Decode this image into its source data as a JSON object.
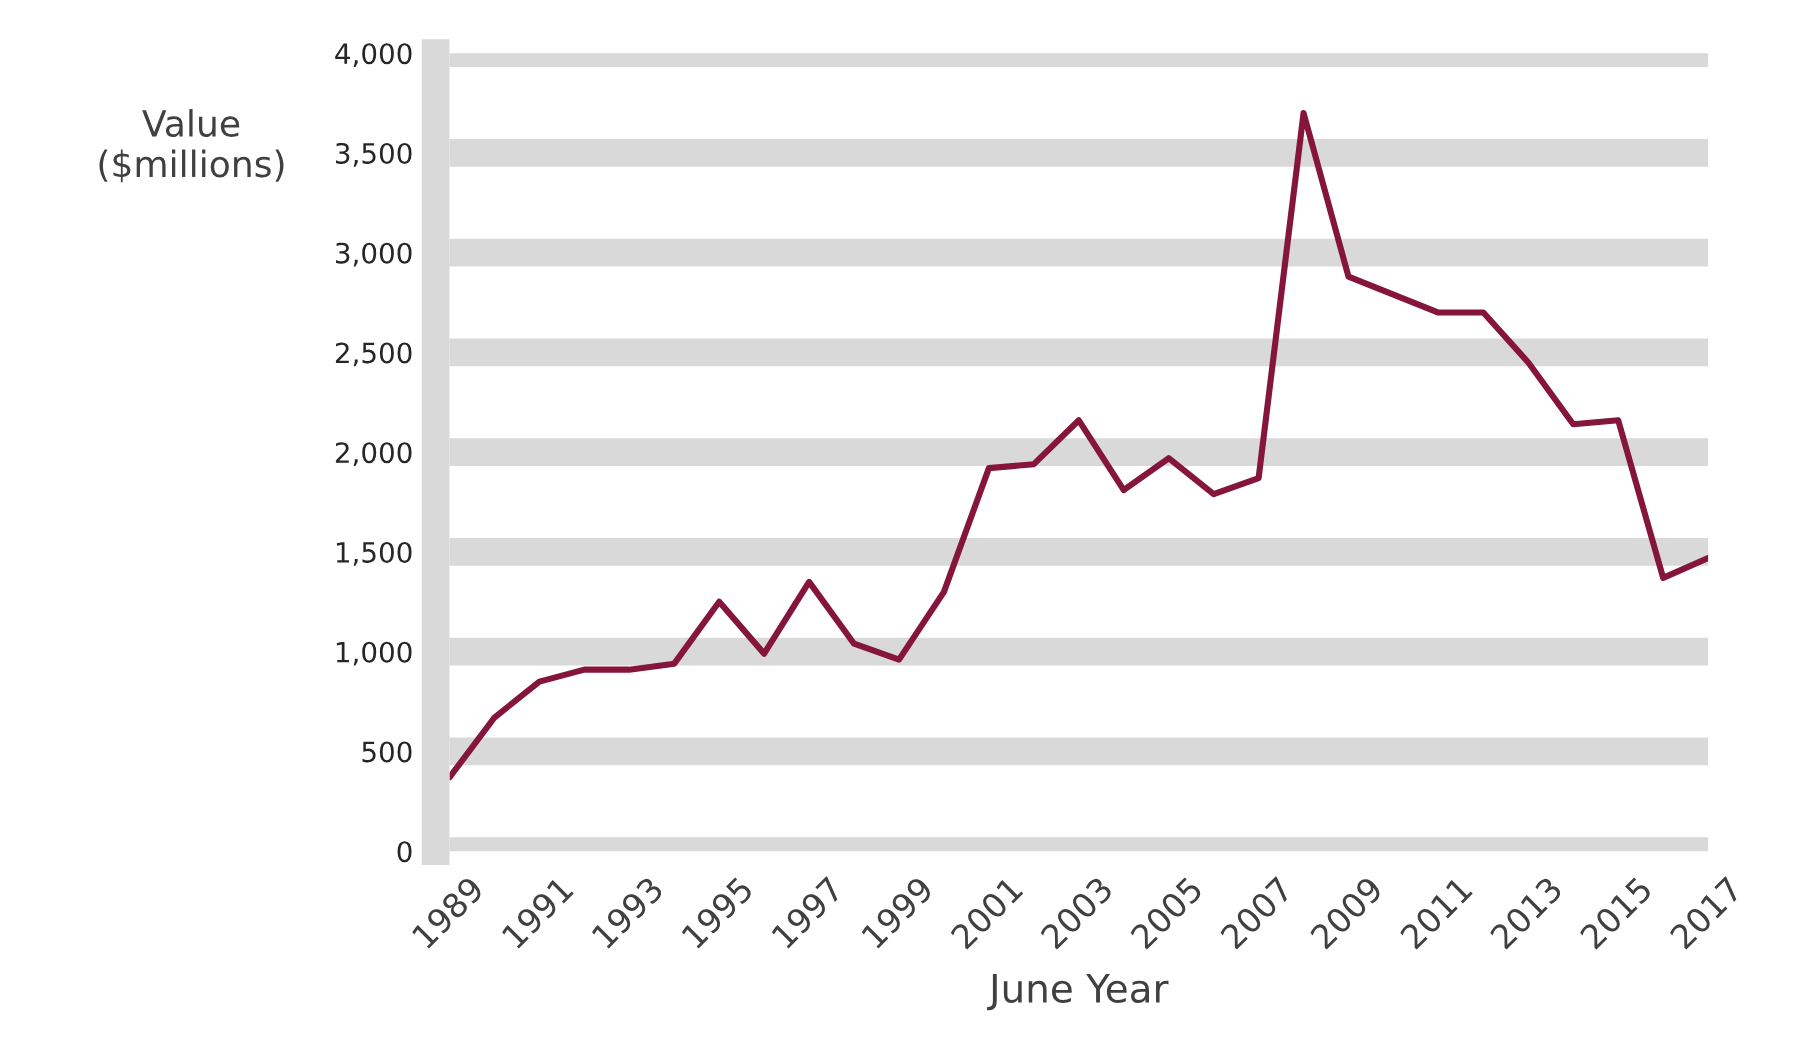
{
  "chart_data": {
    "type": "line",
    "xlabel": "June Year",
    "ylabel": "Value\n($millions)",
    "x": [
      1989,
      1990,
      1991,
      1992,
      1993,
      1994,
      1995,
      1996,
      1997,
      1998,
      1999,
      2000,
      2001,
      2002,
      2003,
      2004,
      2005,
      2006,
      2007,
      2008,
      2009,
      2010,
      2011,
      2012,
      2013,
      2014,
      2015,
      2016,
      2017
    ],
    "series": [
      {
        "color": "#85163a",
        "values": [
          370,
          670,
          850,
          910,
          910,
          940,
          1250,
          990,
          1350,
          1040,
          960,
          1300,
          1920,
          1940,
          2160,
          1810,
          1970,
          1790,
          1870,
          3700,
          2880,
          2790,
          2700,
          2700,
          2450,
          2140,
          2160,
          1370,
          1470
        ]
      }
    ],
    "xlim": [
      1989,
      2017
    ],
    "xticks": [
      1989,
      1991,
      1993,
      1995,
      1997,
      1999,
      2001,
      2003,
      2005,
      2007,
      2009,
      2011,
      2013,
      2015,
      2017
    ],
    "ylim": [
      0,
      4000
    ],
    "yticks": [
      {
        "value": 0,
        "label": "0"
      },
      {
        "value": 500,
        "label": "500"
      },
      {
        "value": 1000,
        "label": "1,000"
      },
      {
        "value": 1500,
        "label": "1,500"
      },
      {
        "value": 2000,
        "label": "2,000"
      },
      {
        "value": 2500,
        "label": "2,500"
      },
      {
        "value": 3000,
        "label": "3,000"
      },
      {
        "value": 3500,
        "label": "3,500"
      },
      {
        "value": 4000,
        "label": "4,000"
      }
    ],
    "grid": "y",
    "legend": false,
    "marker": "none",
    "line_style": "solid"
  }
}
